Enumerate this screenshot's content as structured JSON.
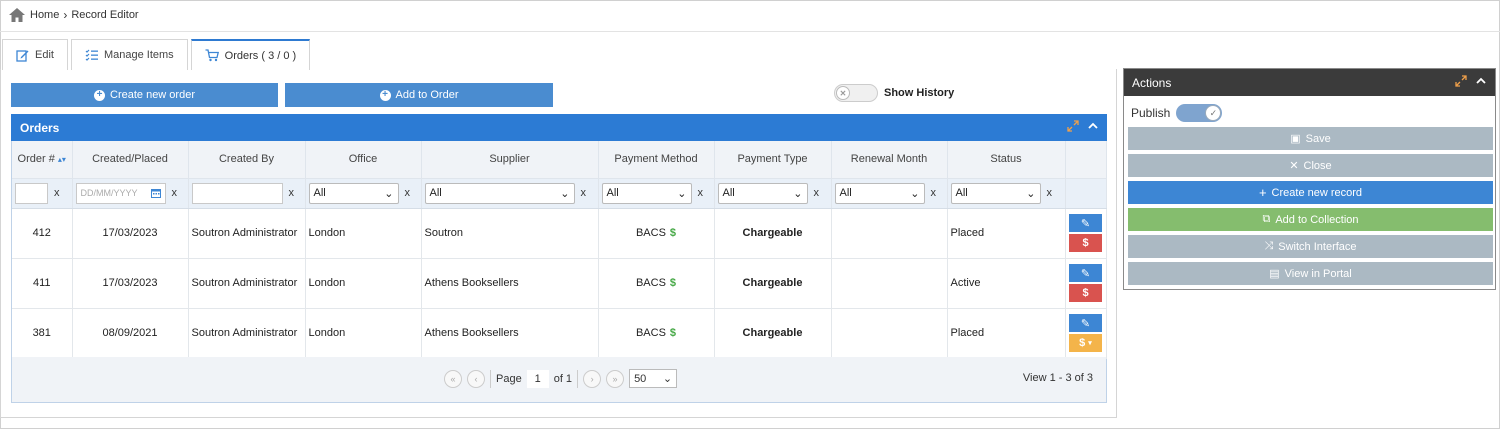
{
  "breadcrumb": {
    "home": "Home",
    "current": "Record Editor"
  },
  "tabs": [
    {
      "label": "Edit"
    },
    {
      "label": "Manage Items"
    },
    {
      "label": "Orders ( 3 / 0 )"
    }
  ],
  "toolbar": {
    "create_order": "Create new order",
    "add_to_order": "Add to Order",
    "show_history": "Show History"
  },
  "orders_panel": {
    "title": "Orders",
    "columns": [
      "Order #",
      "Created/Placed",
      "Created By",
      "Office",
      "Supplier",
      "Payment Method",
      "Payment Type",
      "Renewal Month",
      "Status"
    ],
    "filters": {
      "date_placeholder": "DD/MM/YYYY",
      "all": "All",
      "clear": "x"
    },
    "rows": [
      {
        "order": "412",
        "date": "17/03/2023",
        "by": "Soutron Administrator",
        "office": "London",
        "supplier": "Soutron",
        "method": "BACS",
        "currency": "$",
        "type": "Chargeable",
        "renewal": "",
        "status": "Placed"
      },
      {
        "order": "411",
        "date": "17/03/2023",
        "by": "Soutron Administrator",
        "office": "London",
        "supplier": "Athens Booksellers",
        "method": "BACS",
        "currency": "$",
        "type": "Chargeable",
        "renewal": "",
        "status": "Active"
      },
      {
        "order": "381",
        "date": "08/09/2021",
        "by": "Soutron Administrator",
        "office": "London",
        "supplier": "Athens Booksellers",
        "method": "BACS",
        "currency": "$",
        "type": "Chargeable",
        "renewal": "",
        "status": "Placed"
      }
    ],
    "pager": {
      "page_label": "Page",
      "page": "1",
      "of": "of 1",
      "page_size": "50",
      "view_info": "View 1 - 3 of 3"
    }
  },
  "actions_panel": {
    "title": "Actions",
    "publish": "Publish",
    "buttons": {
      "save": "Save",
      "close": "Close",
      "create_record": "Create new record",
      "add_collection": "Add to Collection",
      "switch_interface": "Switch Interface",
      "view_portal": "View in Portal"
    }
  },
  "colors": {
    "accent": "#2c7bd4",
    "button_blue": "#4a8cd0",
    "grey_button": "#abb9c3",
    "green_button": "#85bd6e",
    "red_button": "#d9534f",
    "orange_button": "#f4b44a"
  }
}
